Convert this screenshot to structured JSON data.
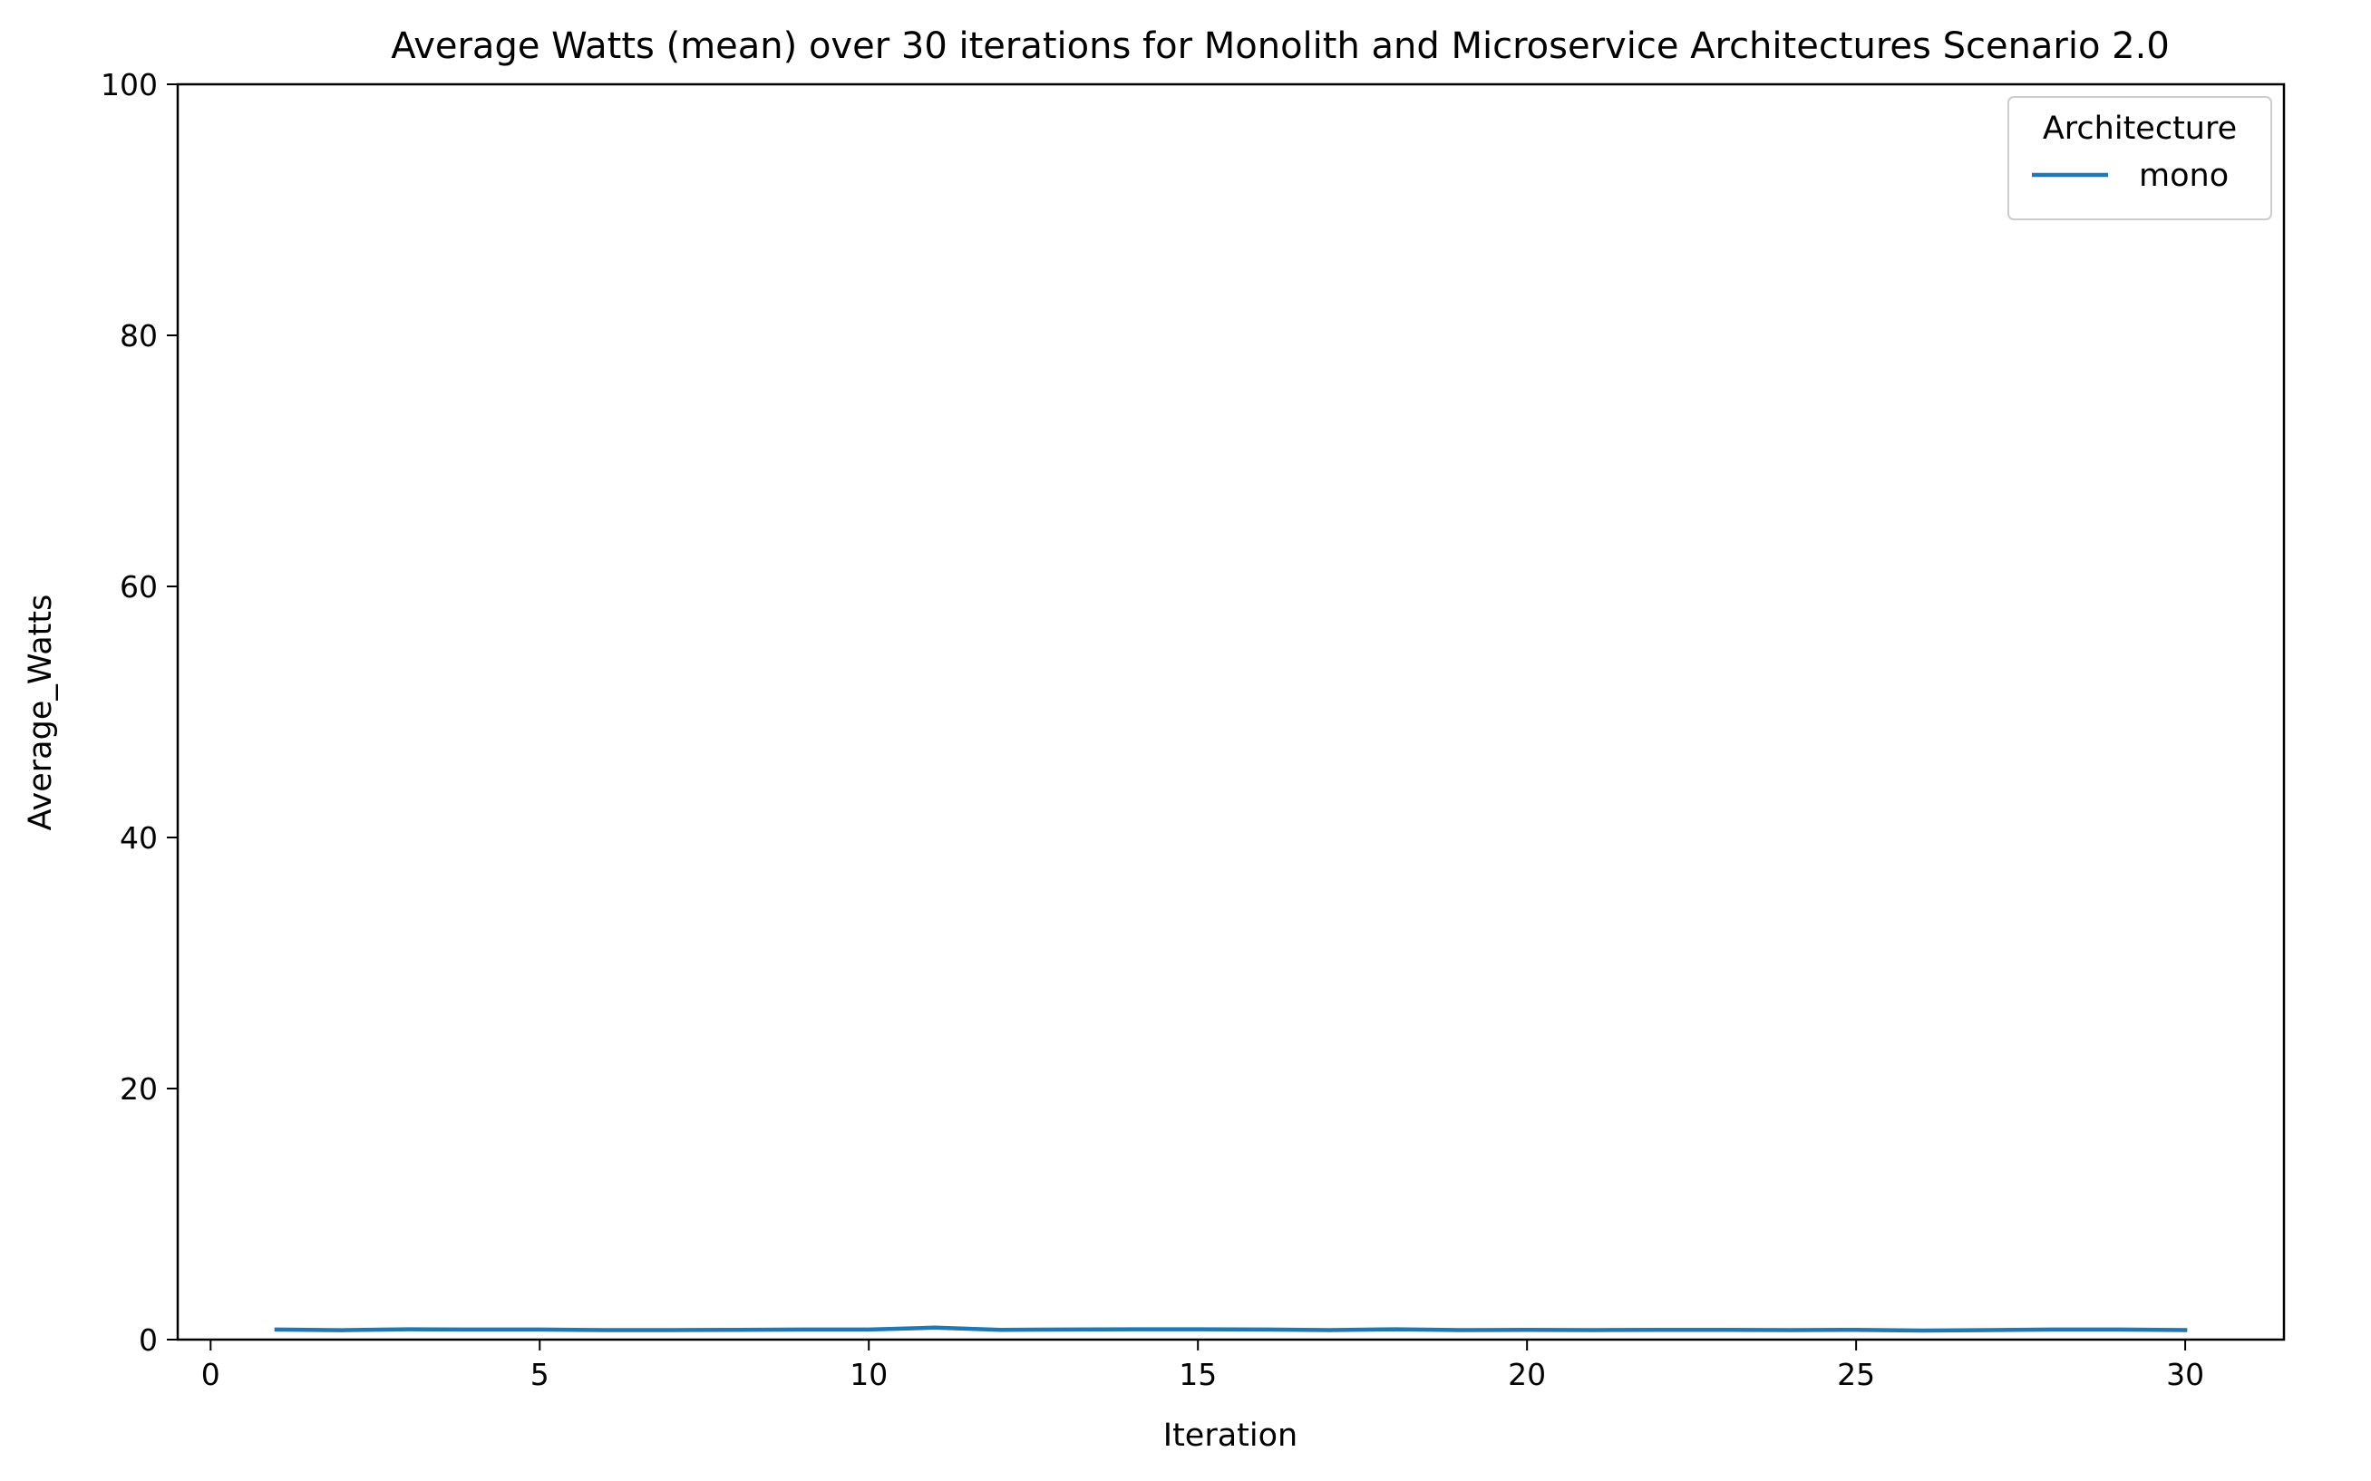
{
  "chart_data": {
    "type": "line",
    "title": "Average Watts (mean) over 30 iterations for Monolith and Microservice Architectures Scenario 2.0",
    "xlabel": "Iteration",
    "ylabel": "Average_Watts",
    "xlim": [
      -0.5,
      31.5
    ],
    "ylim": [
      0,
      100
    ],
    "xticks": [
      0,
      5,
      10,
      15,
      20,
      25,
      30
    ],
    "xtick_labels": [
      "0",
      "5",
      "10",
      "15",
      "20",
      "25",
      "30"
    ],
    "yticks": [
      0,
      20,
      40,
      60,
      80,
      100
    ],
    "ytick_labels": [
      "0",
      "20",
      "40",
      "60",
      "80",
      "100"
    ],
    "grid": false,
    "legend": {
      "title": "Architecture",
      "placement": "top-right"
    },
    "x": [
      1,
      2,
      3,
      4,
      5,
      6,
      7,
      8,
      9,
      10,
      11,
      12,
      13,
      14,
      15,
      16,
      17,
      18,
      19,
      20,
      21,
      22,
      23,
      24,
      25,
      26,
      27,
      28,
      29,
      30
    ],
    "series": [
      {
        "name": "mono",
        "color": "#1f77b4",
        "values": [
          0.8,
          0.75,
          0.82,
          0.8,
          0.8,
          0.76,
          0.76,
          0.78,
          0.8,
          0.8,
          0.95,
          0.78,
          0.8,
          0.82,
          0.82,
          0.8,
          0.76,
          0.82,
          0.76,
          0.78,
          0.76,
          0.78,
          0.78,
          0.76,
          0.78,
          0.72,
          0.76,
          0.8,
          0.8,
          0.76
        ]
      }
    ]
  }
}
